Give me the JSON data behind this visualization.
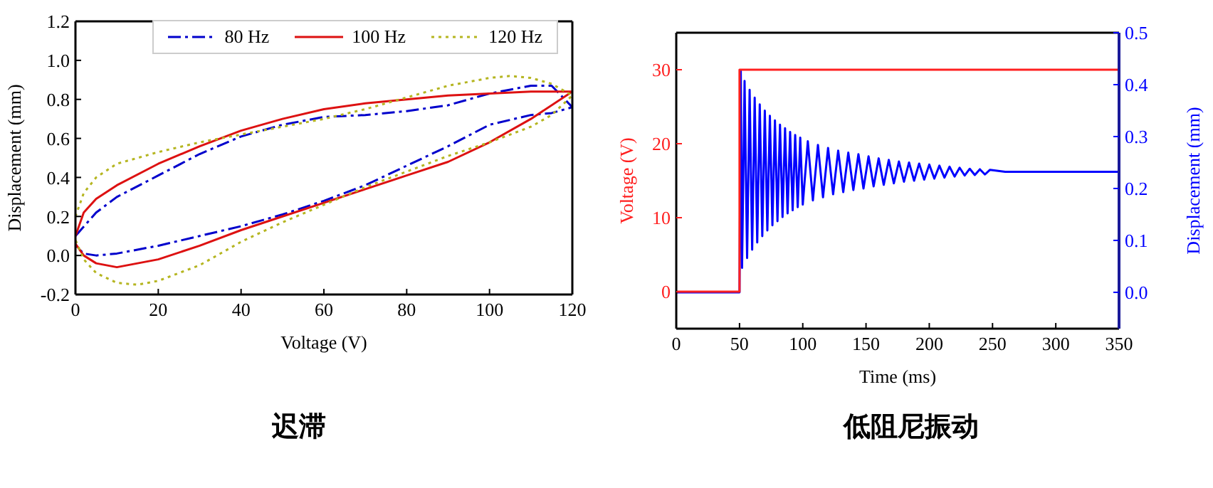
{
  "chart_data": [
    {
      "type": "line",
      "title": "迟滞",
      "xlabel": "Voltage (V)",
      "ylabel": "Displacement (mm)",
      "xlim": [
        0,
        120
      ],
      "xticks": [
        0,
        20,
        40,
        60,
        80,
        100,
        120
      ],
      "ylim": [
        -0.2,
        1.2
      ],
      "yticks": [
        -0.2,
        {
          "value": 0,
          "label": "0.0"
        },
        0.2,
        0.4,
        0.6,
        0.8,
        {
          "value": 1,
          "label": "1.0"
        },
        1.2
      ],
      "legend": "top right",
      "series": [
        {
          "name": "80 Hz",
          "color": "#0000cc",
          "line_style": "dashed",
          "x": [
            0,
            5,
            10,
            20,
            30,
            40,
            50,
            60,
            70,
            80,
            90,
            100,
            110,
            115,
            120,
            115,
            110,
            100,
            90,
            80,
            70,
            60,
            50,
            40,
            30,
            20,
            10,
            5,
            2,
            0
          ],
          "values": [
            0.1,
            0.22,
            0.3,
            0.41,
            0.52,
            0.61,
            0.67,
            0.71,
            0.72,
            0.74,
            0.77,
            0.83,
            0.87,
            0.87,
            0.76,
            0.73,
            0.72,
            0.67,
            0.56,
            0.46,
            0.36,
            0.28,
            0.21,
            0.15,
            0.1,
            0.05,
            0.01,
            0.0,
            0.01,
            0.05
          ]
        },
        {
          "name": "100 Hz",
          "color": "#dd1111",
          "line_style": "solid",
          "x": [
            0,
            2,
            5,
            10,
            20,
            30,
            40,
            50,
            60,
            70,
            80,
            90,
            100,
            110,
            120,
            110,
            100,
            90,
            80,
            70,
            60,
            50,
            40,
            30,
            20,
            10,
            5,
            2,
            0
          ],
          "values": [
            0.1,
            0.22,
            0.29,
            0.36,
            0.47,
            0.56,
            0.64,
            0.7,
            0.75,
            0.78,
            0.8,
            0.82,
            0.83,
            0.84,
            0.84,
            0.7,
            0.58,
            0.48,
            0.41,
            0.34,
            0.27,
            0.2,
            0.13,
            0.05,
            -0.02,
            -0.06,
            -0.04,
            0.0,
            0.06
          ]
        },
        {
          "name": "120 Hz",
          "color": "#b5b520",
          "line_style": "dotted",
          "x": [
            0,
            2,
            5,
            10,
            20,
            30,
            40,
            50,
            60,
            70,
            80,
            90,
            100,
            105,
            110,
            115,
            120,
            115,
            110,
            100,
            90,
            80,
            70,
            60,
            50,
            40,
            30,
            20,
            15,
            10,
            5,
            2,
            0
          ],
          "values": [
            0.2,
            0.32,
            0.4,
            0.47,
            0.53,
            0.58,
            0.62,
            0.66,
            0.7,
            0.75,
            0.81,
            0.87,
            0.91,
            0.92,
            0.91,
            0.88,
            0.82,
            0.72,
            0.66,
            0.58,
            0.51,
            0.43,
            0.35,
            0.26,
            0.17,
            0.07,
            -0.05,
            -0.13,
            -0.15,
            -0.14,
            -0.09,
            -0.02,
            0.08
          ]
        }
      ]
    },
    {
      "type": "line",
      "title": "低阻尼振动",
      "xlabel": "Time (ms)",
      "ylabel": "Voltage (V)",
      "y2label": "Displacement (mm)",
      "xlim": [
        0,
        350
      ],
      "xticks": [
        0,
        50,
        100,
        150,
        200,
        250,
        300,
        350
      ],
      "ylim": [
        -5,
        35
      ],
      "yticks": [
        0,
        10,
        20,
        30
      ],
      "y2lim": [
        -0.07,
        0.5
      ],
      "y2ticks": [
        {
          "value": 0,
          "label": "0.0"
        },
        0.1,
        0.2,
        0.3,
        0.4,
        0.5
      ],
      "series": [
        {
          "color": "#0000ff",
          "axis": "y2",
          "x": [
            0,
            50,
            51,
            52,
            54,
            56,
            58,
            60,
            62,
            64,
            66,
            68,
            70,
            72,
            74,
            76,
            78,
            80,
            82,
            84,
            86,
            88,
            90,
            92,
            94,
            96,
            98,
            100,
            104,
            108,
            112,
            116,
            120,
            124,
            128,
            132,
            136,
            140,
            144,
            148,
            152,
            156,
            160,
            164,
            168,
            172,
            176,
            180,
            184,
            188,
            192,
            196,
            200,
            204,
            208,
            212,
            216,
            220,
            224,
            228,
            232,
            236,
            240,
            244,
            248,
            260,
            300,
            350
          ],
          "values": [
            0,
            0,
            0.427,
            0.047,
            0.407,
            0.066,
            0.39,
            0.082,
            0.375,
            0.096,
            0.362,
            0.108,
            0.35,
            0.119,
            0.34,
            0.129,
            0.331,
            0.137,
            0.323,
            0.145,
            0.316,
            0.152,
            0.309,
            0.158,
            0.303,
            0.164,
            0.298,
            0.169,
            0.291,
            0.177,
            0.284,
            0.183,
            0.278,
            0.189,
            0.273,
            0.193,
            0.269,
            0.197,
            0.266,
            0.2,
            0.262,
            0.204,
            0.258,
            0.207,
            0.255,
            0.21,
            0.252,
            0.213,
            0.25,
            0.215,
            0.248,
            0.217,
            0.246,
            0.219,
            0.244,
            0.221,
            0.242,
            0.223,
            0.24,
            0.225,
            0.238,
            0.226,
            0.237,
            0.227,
            0.236,
            0.232,
            0.232,
            0.232
          ]
        },
        {
          "color": "#ff2020",
          "axis": "y",
          "x": [
            0,
            50,
            50,
            350
          ],
          "values": [
            0,
            0,
            30,
            30
          ]
        }
      ]
    }
  ]
}
